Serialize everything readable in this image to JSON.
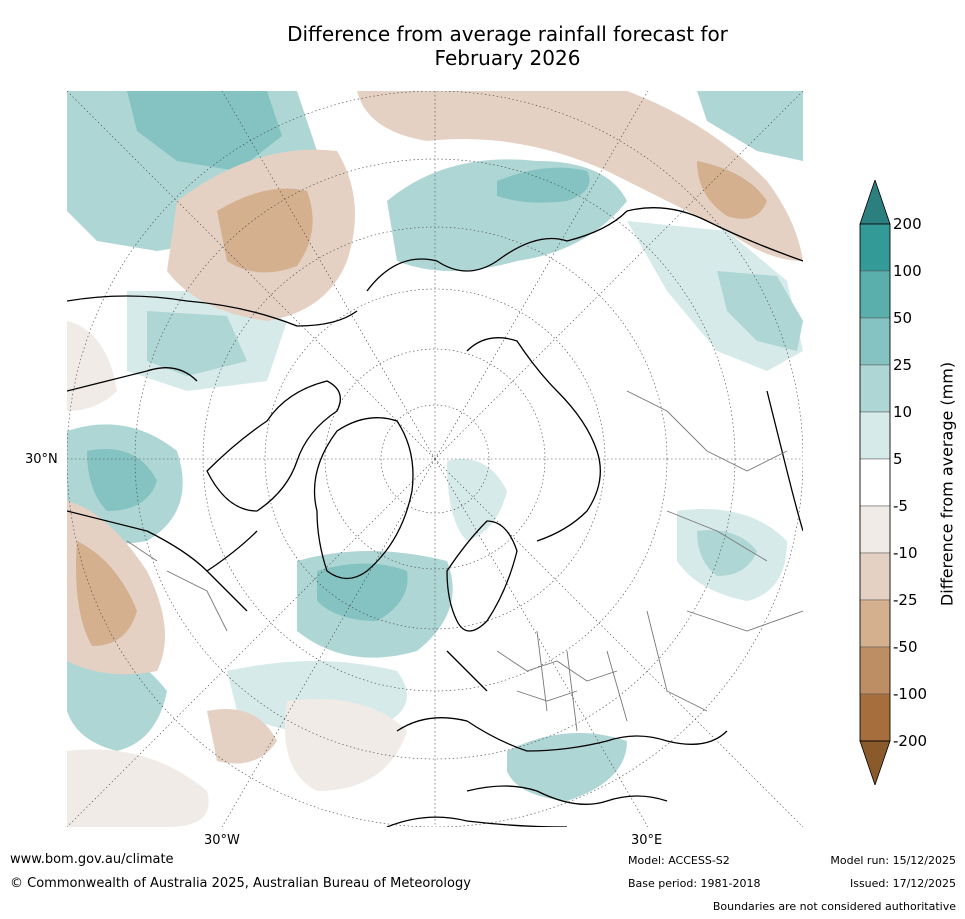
{
  "title": {
    "line1": "Difference from average rainfall forecast for",
    "line2": "February 2026"
  },
  "map": {
    "lat_label": "30°N",
    "lon_labels": {
      "west": "30°W",
      "east": "30°E"
    }
  },
  "colorbar": {
    "label": "Difference from average (mm)",
    "ticks": [
      "200",
      "100",
      "50",
      "25",
      "10",
      "5",
      "-5",
      "-10",
      "-25",
      "-50",
      "-100",
      "-200"
    ],
    "colors": [
      "#2c7f7f",
      "#349a98",
      "#5aaeac",
      "#84c3c1",
      "#aed6d5",
      "#d6eae9",
      "#ffffff",
      "#f0ebe6",
      "#e4d1c3",
      "#d4b08f",
      "#bd8e63",
      "#a56e3c",
      "#8b5a2b"
    ]
  },
  "footer": {
    "url": "www.bom.gov.au/climate",
    "copyright": "© Commonwealth of Australia 2025, Australian Bureau of Meteorology",
    "model": "Model: ACCESS-S2",
    "base_period": "Base period: 1981-2018",
    "model_run": "Model run: 15/12/2025",
    "issued": "Issued: 17/12/2025",
    "disclaimer": "Boundaries are not considered authoritative"
  }
}
